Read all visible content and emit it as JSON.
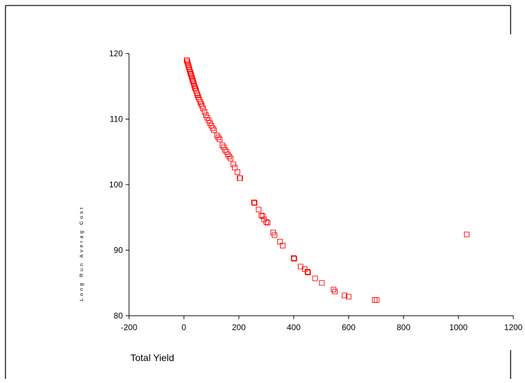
{
  "chart_data": {
    "type": "scatter",
    "title": "",
    "xlabel": "Total Yield",
    "ylabel": "Long Run Averag Cost",
    "xlim": [
      -200,
      1200
    ],
    "ylim": [
      80,
      120
    ],
    "xticks": [
      -200,
      0,
      200,
      400,
      600,
      800,
      1000,
      1200
    ],
    "yticks": [
      80,
      90,
      100,
      110,
      120
    ],
    "x_tick_labels": [
      "-200",
      "0",
      "200",
      "400",
      "600",
      "800",
      "1000",
      "1200"
    ],
    "y_tick_labels": [
      "80",
      "90",
      "100",
      "110",
      "120"
    ],
    "grid": false,
    "legend": "none",
    "marker": "open-square",
    "marker_color": "#ff0000",
    "series": [
      {
        "x": [
          10,
          12,
          14,
          16,
          18,
          20,
          22,
          24,
          26,
          28,
          30,
          32,
          34,
          36,
          38,
          40,
          42,
          45,
          48,
          50,
          53,
          56,
          60,
          63,
          66,
          70,
          75,
          80,
          85,
          90,
          95,
          100,
          105,
          110,
          120,
          125,
          130,
          140,
          145,
          150,
          155,
          160,
          165,
          170,
          180,
          185,
          195,
          203,
          205,
          255,
          258,
          272,
          282,
          287,
          292,
          300,
          305,
          325,
          330,
          350,
          360,
          400,
          402,
          425,
          440,
          450,
          452,
          478,
          502,
          545,
          550,
          585,
          600,
          695,
          702,
          1030
        ],
        "y": [
          119.0,
          118.8,
          118.5,
          118.2,
          117.9,
          117.6,
          117.3,
          117.0,
          116.8,
          116.5,
          116.2,
          115.9,
          115.7,
          115.4,
          115.1,
          114.8,
          114.6,
          114.3,
          113.9,
          113.6,
          113.3,
          113.0,
          112.6,
          112.3,
          112.0,
          111.6,
          111.1,
          110.6,
          110.2,
          109.8,
          109.4,
          109.0,
          108.6,
          108.3,
          107.5,
          107.2,
          106.9,
          106.0,
          105.7,
          105.3,
          105.0,
          104.6,
          104.3,
          104.0,
          103.1,
          102.6,
          101.9,
          101.0,
          101.0,
          97.3,
          97.2,
          96.2,
          95.3,
          95.2,
          94.7,
          94.3,
          94.2,
          92.7,
          92.3,
          91.3,
          90.7,
          88.8,
          88.7,
          87.5,
          87.1,
          86.7,
          86.6,
          85.7,
          85.0,
          84.0,
          83.7,
          83.1,
          82.9,
          82.4,
          82.4,
          92.4
        ]
      }
    ]
  }
}
